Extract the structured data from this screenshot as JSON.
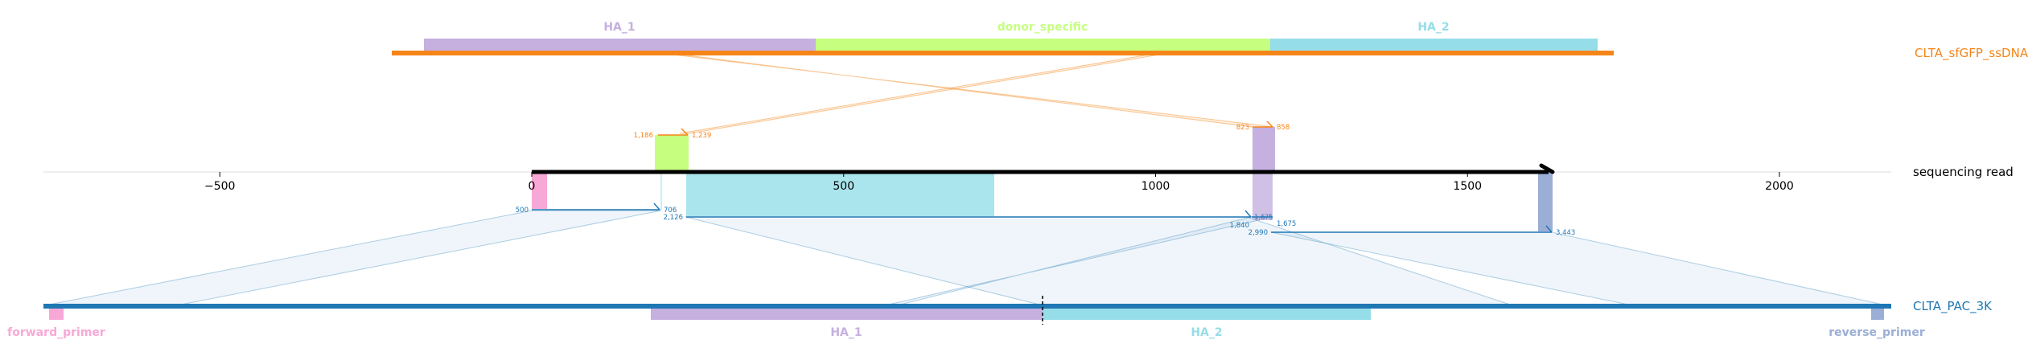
{
  "tracks": {
    "top": {
      "name": "CLTA_sfGFP_ssDNA",
      "color": "#f58518"
    },
    "read": {
      "name": "sequencing read",
      "color": "#000000"
    },
    "bottom": {
      "name": "CLTA_PAC_3K",
      "color": "#1f77b4"
    }
  },
  "axis": {
    "min": -780,
    "max": 2180,
    "ticks": [
      {
        "value": -500,
        "label": "−500"
      },
      {
        "value": 0,
        "label": "0"
      },
      {
        "value": 500,
        "label": "500"
      },
      {
        "value": 1000,
        "label": "1000"
      },
      {
        "value": 1500,
        "label": "1500"
      },
      {
        "value": 2000,
        "label": "2000"
      }
    ]
  },
  "top_features": [
    {
      "name": "HA_1",
      "color": "#c5b0e0"
    },
    {
      "name": "donor_specific",
      "color": "#c6ff80"
    },
    {
      "name": "HA_2",
      "color": "#95dde8"
    }
  ],
  "bottom_features": [
    {
      "name": "forward_primer",
      "color": "#f7a8d6"
    },
    {
      "name": "HA_1",
      "color": "#c5b0e0"
    },
    {
      "name": "HA_2",
      "color": "#95dde8"
    },
    {
      "name": "reverse_primer",
      "color": "#9aaed6"
    }
  ],
  "alignment_labels": {
    "top": {
      "a1_start": "1,186",
      "a1_end": "1,239",
      "a2_start": "823",
      "a2_end": "858"
    },
    "bottom": {
      "b1_start": "500",
      "b1_end": "706",
      "b2_start": "2,126",
      "b2_end": "1,840",
      "b3_start": "1,6?5",
      "b3_end": "1,675",
      "b4_start": "2,990",
      "b4_end": "3,443"
    }
  },
  "colors": {
    "read_pink": "#f7a8d6",
    "read_green": "#c6ff80",
    "read_cyan": "#95dde8",
    "read_purple": "#c5b0e0",
    "read_blue": "#9aaed6"
  }
}
